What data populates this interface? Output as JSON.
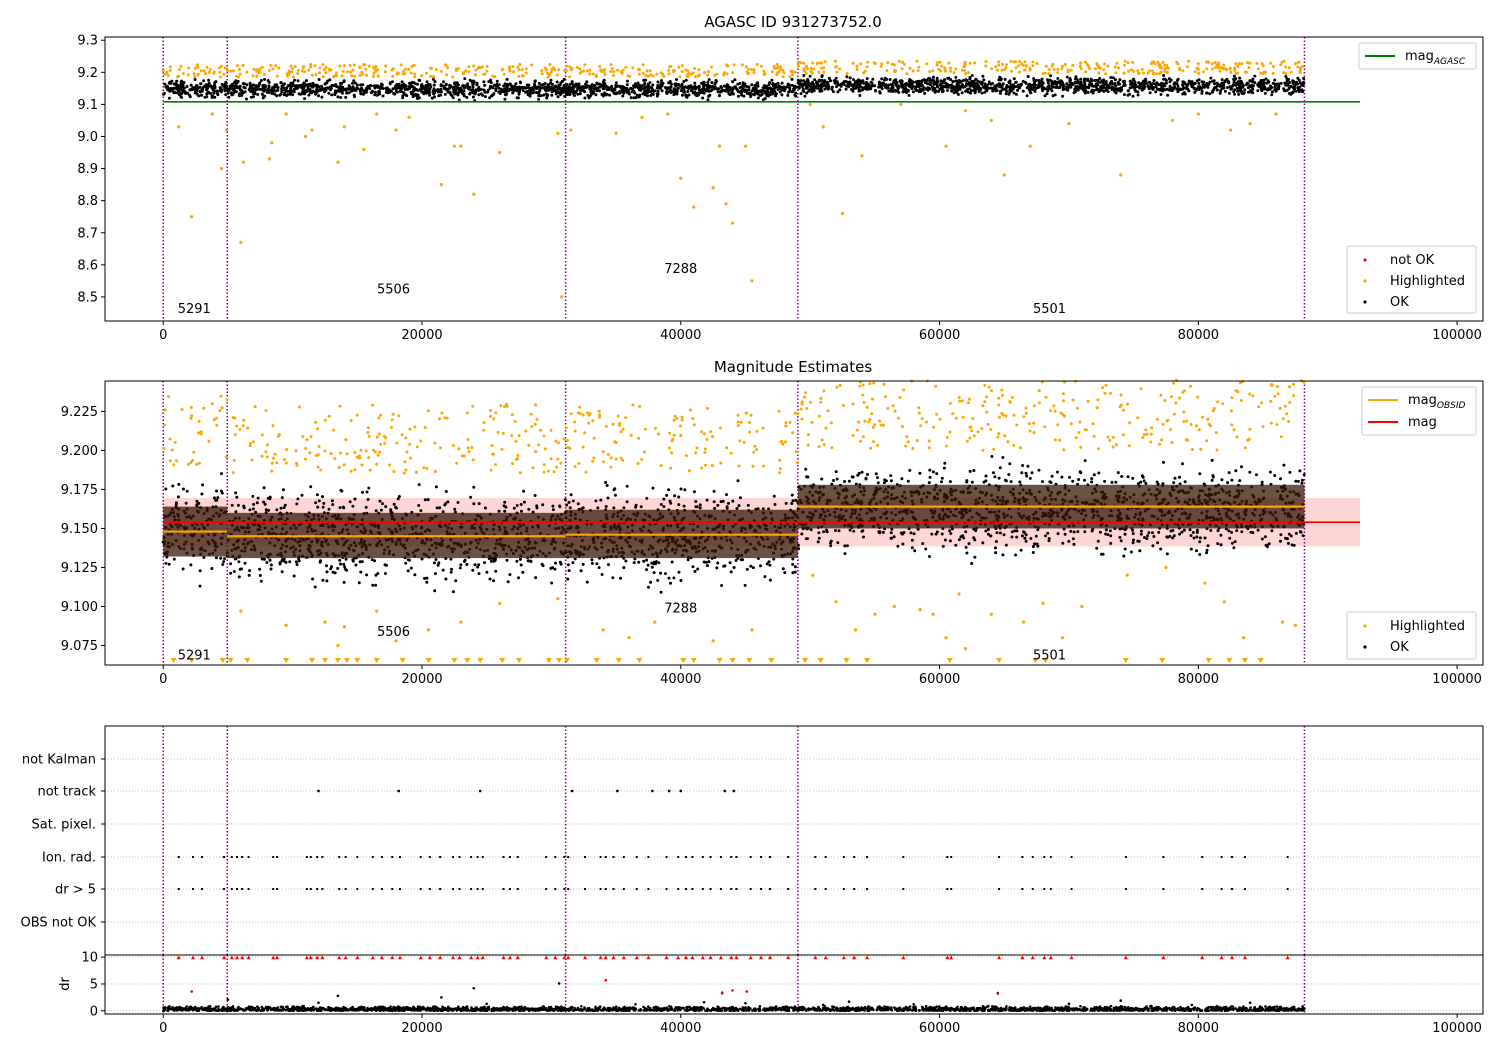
{
  "chart_data": [
    {
      "type": "scatter",
      "title": "AGASC ID 931273752.0",
      "xlabel": "",
      "ylabel": "",
      "xlim": [
        -4500,
        102000
      ],
      "ylim": [
        8.425,
        9.31
      ],
      "xticks": [
        0,
        20000,
        40000,
        60000,
        80000,
        100000
      ],
      "yticks": [
        8.5,
        8.6,
        8.7,
        8.8,
        8.9,
        9.0,
        9.1,
        9.2,
        9.3
      ],
      "ytick_decimals": 1,
      "obsid_boundaries": [
        0,
        4950,
        31100,
        49050,
        88200
      ],
      "obsid_labels": [
        {
          "text": "5291",
          "x": 2400,
          "y": 8.45
        },
        {
          "text": "5506",
          "x": 17800,
          "y": 8.51
        },
        {
          "text": "7288",
          "x": 40000,
          "y": 8.575
        },
        {
          "text": "5501",
          "x": 68500,
          "y": 8.45
        }
      ],
      "hlines": [
        {
          "name": "mag_AGASC",
          "y": 9.108,
          "x0": 0,
          "x1": 92500,
          "color": "#008000"
        }
      ],
      "ok_band": {
        "segments": [
          {
            "x0": 0,
            "x1": 4950,
            "y0": 9.11,
            "y1": 9.185
          },
          {
            "x0": 4950,
            "x1": 31100,
            "y0": 9.11,
            "y1": 9.185
          },
          {
            "x0": 31100,
            "x1": 49050,
            "y0": 9.11,
            "y1": 9.185
          },
          {
            "x0": 49050,
            "x1": 88200,
            "y0": 9.12,
            "y1": 9.195
          }
        ]
      },
      "highlighted_points": [
        [
          300,
          9.2
        ],
        [
          1200,
          9.03
        ],
        [
          2200,
          8.75
        ],
        [
          3800,
          9.07
        ],
        [
          4500,
          8.9
        ],
        [
          4900,
          9.02
        ],
        [
          6000,
          8.67
        ],
        [
          6200,
          8.92
        ],
        [
          8200,
          8.93
        ],
        [
          8400,
          8.98
        ],
        [
          9500,
          9.07
        ],
        [
          11000,
          9.0
        ],
        [
          11500,
          9.02
        ],
        [
          13500,
          8.92
        ],
        [
          14000,
          9.03
        ],
        [
          15500,
          8.96
        ],
        [
          16500,
          9.07
        ],
        [
          18000,
          9.02
        ],
        [
          19000,
          9.06
        ],
        [
          21500,
          8.85
        ],
        [
          22500,
          8.97
        ],
        [
          23000,
          8.97
        ],
        [
          24000,
          8.82
        ],
        [
          26000,
          8.95
        ],
        [
          30500,
          9.01
        ],
        [
          30800,
          8.5
        ],
        [
          31500,
          9.02
        ],
        [
          35000,
          9.01
        ],
        [
          37000,
          9.06
        ],
        [
          39000,
          9.07
        ],
        [
          40000,
          8.87
        ],
        [
          41000,
          8.78
        ],
        [
          42500,
          8.84
        ],
        [
          43000,
          8.97
        ],
        [
          43500,
          8.79
        ],
        [
          44000,
          8.73
        ],
        [
          45000,
          8.97
        ],
        [
          45500,
          8.55
        ],
        [
          50000,
          9.1
        ],
        [
          51000,
          9.03
        ],
        [
          52500,
          8.76
        ],
        [
          54000,
          8.94
        ],
        [
          57000,
          9.1
        ],
        [
          60500,
          8.97
        ],
        [
          62000,
          9.08
        ],
        [
          64000,
          9.05
        ],
        [
          65000,
          8.88
        ],
        [
          67000,
          8.97
        ],
        [
          70000,
          9.04
        ],
        [
          74000,
          8.88
        ],
        [
          78000,
          9.05
        ],
        [
          80000,
          9.07
        ],
        [
          82500,
          9.02
        ],
        [
          84000,
          9.04
        ],
        [
          86000,
          9.07
        ]
      ],
      "legend": [
        "mag_AGASC",
        "not OK",
        "Highlighted",
        "OK"
      ]
    },
    {
      "type": "scatter",
      "title": "Magnitude Estimates",
      "xlabel": "",
      "ylabel": "",
      "xlim": [
        -4500,
        102000
      ],
      "ylim": [
        9.0625,
        9.2445
      ],
      "xticks": [
        0,
        20000,
        40000,
        60000,
        80000,
        100000
      ],
      "yticks": [
        9.075,
        9.1,
        9.125,
        9.15,
        9.175,
        9.2,
        9.225
      ],
      "ytick_decimals": 3,
      "obsid_boundaries": [
        0,
        4950,
        31100,
        49050,
        88200
      ],
      "obsid_labels": [
        {
          "text": "5291",
          "x": 2400,
          "y": 9.066
        },
        {
          "text": "5506",
          "x": 17800,
          "y": 9.081
        },
        {
          "text": "7288",
          "x": 40000,
          "y": 9.096
        },
        {
          "text": "5501",
          "x": 68500,
          "y": 9.066
        }
      ],
      "mag_band": {
        "x0": 0,
        "x1": 92500,
        "y0": 9.1385,
        "y1": 9.1695
      },
      "hlines": [
        {
          "name": "mag",
          "y": 9.154,
          "x0": 0,
          "x1": 92500,
          "color": "#ff0000"
        }
      ],
      "obsid_mags": [
        {
          "x0": 0,
          "x1": 4950,
          "mag": 9.148,
          "err_lo": 9.132,
          "err_hi": 9.164
        },
        {
          "x0": 4950,
          "x1": 31100,
          "mag": 9.145,
          "err_lo": 9.131,
          "err_hi": 9.16
        },
        {
          "x0": 31100,
          "x1": 49050,
          "mag": 9.146,
          "err_lo": 9.131,
          "err_hi": 9.162
        },
        {
          "x0": 49050,
          "x1": 88200,
          "mag": 9.164,
          "err_lo": 9.15,
          "err_hi": 9.178
        }
      ],
      "ok_band": {
        "segments": [
          {
            "x0": 0,
            "x1": 4950,
            "y0": 9.11,
            "y1": 9.19
          },
          {
            "x0": 4950,
            "x1": 31100,
            "y0": 9.105,
            "y1": 9.185
          },
          {
            "x0": 31100,
            "x1": 49050,
            "y0": 9.105,
            "y1": 9.185
          },
          {
            "x0": 49050,
            "x1": 88200,
            "y0": 9.125,
            "y1": 9.2
          }
        ]
      },
      "highlighted_points": [
        [
          6000,
          9.097
        ],
        [
          9500,
          9.088
        ],
        [
          12500,
          9.09
        ],
        [
          13500,
          9.075
        ],
        [
          14000,
          9.087
        ],
        [
          16500,
          9.097
        ],
        [
          18000,
          9.078
        ],
        [
          20500,
          9.085
        ],
        [
          23000,
          9.09
        ],
        [
          26000,
          9.102
        ],
        [
          30500,
          9.105
        ],
        [
          34000,
          9.085
        ],
        [
          36000,
          9.08
        ],
        [
          38000,
          9.09
        ],
        [
          42500,
          9.078
        ],
        [
          45500,
          9.085
        ],
        [
          50200,
          9.12
        ],
        [
          52000,
          9.103
        ],
        [
          53500,
          9.085
        ],
        [
          55000,
          9.095
        ],
        [
          56500,
          9.1
        ],
        [
          58500,
          9.098
        ],
        [
          59500,
          9.095
        ],
        [
          60500,
          9.08
        ],
        [
          61500,
          9.108
        ],
        [
          62000,
          9.073
        ],
        [
          64000,
          9.095
        ],
        [
          66500,
          9.09
        ],
        [
          68000,
          9.102
        ],
        [
          69500,
          9.08
        ],
        [
          71000,
          9.1
        ],
        [
          74500,
          9.12
        ],
        [
          77500,
          9.125
        ],
        [
          80500,
          9.115
        ],
        [
          82000,
          9.103
        ],
        [
          83500,
          9.08
        ],
        [
          86500,
          9.09
        ],
        [
          87500,
          9.088
        ]
      ],
      "triangle_markers_x": [
        800,
        2200,
        4600,
        5200,
        6500,
        9500,
        11500,
        12500,
        13500,
        14200,
        15000,
        16500,
        18500,
        20500,
        22500,
        23500,
        24500,
        26200,
        27500,
        29800,
        30600,
        31200,
        33500,
        35200,
        36800,
        40200,
        41000,
        43000,
        44000,
        45300,
        47000,
        49600,
        50800,
        52800,
        54400,
        60800,
        64600,
        67400,
        68200,
        74400,
        77200,
        80800,
        82400,
        83600,
        84800
      ],
      "legend": [
        "mag_OBSID",
        "mag",
        "Highlighted",
        "OK"
      ]
    },
    {
      "type": "scatter",
      "title": "",
      "xlabel": "",
      "ylabel": "",
      "xlim": [
        -4500,
        102000
      ],
      "row_labels": [
        "not Kalman",
        "not track",
        "Sat. pixel.",
        "Ion. rad.",
        "dr > 5",
        "OBS not OK"
      ],
      "obsid_boundaries": [
        0,
        4950,
        31100,
        49050,
        88200
      ],
      "flag_x": [
        1200,
        2300,
        3000,
        4700,
        5300,
        5700,
        6100,
        6600,
        8500,
        8800,
        11100,
        11400,
        11900,
        12300,
        13600,
        14100,
        15000,
        16200,
        16900,
        17700,
        18300,
        19900,
        20600,
        21400,
        22400,
        22900,
        23800,
        24300,
        24700,
        26300,
        26800,
        27400,
        29600,
        30300,
        31000,
        31300,
        32600,
        33800,
        34200,
        34800,
        35600,
        36600,
        37500,
        38900,
        39800,
        40400,
        40900,
        41700,
        42300,
        43100,
        43900,
        44300,
        45400,
        46200,
        46900,
        48300,
        50400,
        51200,
        52600,
        53400,
        54400,
        57200,
        60600,
        60900,
        64600,
        66400,
        67200,
        68100,
        68600,
        70200,
        74400,
        77300,
        80300,
        81800,
        82600,
        83600,
        86900
      ],
      "not_track_x": [
        12000,
        18200,
        24500,
        31600,
        35100,
        37800,
        39100,
        40000,
        43400,
        44100
      ]
    },
    {
      "type": "scatter",
      "title": "",
      "xlabel": "",
      "ylabel": "dr",
      "xlim": [
        -4500,
        102000
      ],
      "ylim": [
        -0.6,
        10.4
      ],
      "xticks": [
        0,
        20000,
        40000,
        60000,
        80000,
        100000
      ],
      "yticks": [
        0,
        5,
        10
      ],
      "obsid_boundaries": [
        0,
        4950,
        31100,
        49050,
        88200
      ],
      "outliers_black": [
        [
          5000,
          2.1
        ],
        [
          12000,
          1.5
        ],
        [
          13500,
          2.8
        ],
        [
          21500,
          2.5
        ],
        [
          24000,
          4.2
        ],
        [
          25000,
          1.3
        ],
        [
          30600,
          5.1
        ],
        [
          36500,
          1.2
        ],
        [
          41800,
          1.6
        ],
        [
          43200,
          3.3
        ],
        [
          45000,
          1.4
        ],
        [
          51000,
          1.1
        ],
        [
          53000,
          1.7
        ],
        [
          58000,
          1.2
        ],
        [
          64500,
          3.3
        ],
        [
          70000,
          1.3
        ],
        [
          74000,
          1.9
        ],
        [
          79500,
          1.1
        ],
        [
          84000,
          1.5
        ]
      ],
      "outliers_red": [
        [
          2200,
          3.6
        ],
        [
          34200,
          5.7
        ],
        [
          43200,
          3.4
        ],
        [
          44000,
          3.8
        ],
        [
          45100,
          3.6
        ],
        [
          64500,
          3.2
        ]
      ],
      "top_red_x": [
        1200,
        2300,
        3000,
        4700,
        5300,
        5700,
        6100,
        6600,
        8500,
        8800,
        11100,
        11400,
        11900,
        12300,
        13600,
        14100,
        15000,
        16200,
        16900,
        17700,
        18300,
        19900,
        20600,
        21400,
        22400,
        22900,
        23800,
        24300,
        24700,
        26300,
        26800,
        27400,
        29600,
        30300,
        31000,
        31300,
        32600,
        33800,
        34200,
        34800,
        35600,
        36600,
        37500,
        38900,
        39800,
        40400,
        40900,
        41700,
        42300,
        43100,
        43900,
        44300,
        45400,
        46200,
        46900,
        48300,
        50400,
        51200,
        52600,
        53400,
        54400,
        57200,
        60600,
        60900,
        64600,
        66400,
        67200,
        68100,
        68600,
        70200,
        74400,
        77300,
        80300,
        81800,
        82600,
        83600,
        86900
      ]
    }
  ],
  "legends": {
    "top_line": {
      "label": "mag",
      "sub": "AGASC"
    },
    "top_points": [
      {
        "label": "not OK"
      },
      {
        "label": "Highlighted"
      },
      {
        "label": "OK"
      }
    ],
    "mid_lines": [
      {
        "label": "mag",
        "sub": "OBSID"
      },
      {
        "label": "mag",
        "sub": ""
      }
    ],
    "mid_points": [
      {
        "label": "Highlighted"
      },
      {
        "label": "OK"
      }
    ]
  },
  "colors": {
    "ok": "#000000",
    "highlighted": "#ffa500",
    "not_ok": "#ff0000",
    "agasc_line": "#008000",
    "obs_boundary": "#800080",
    "mag_line": "#ff0000",
    "mag_band": "#ffd6d6",
    "obsid_line": "#ffa500",
    "obsid_fill": "#3a1808"
  }
}
